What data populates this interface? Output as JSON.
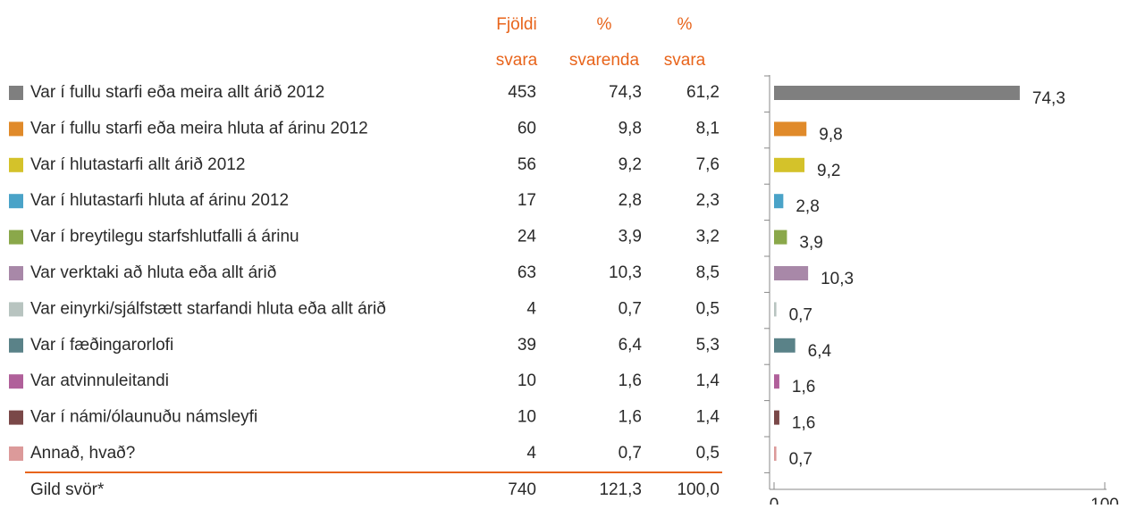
{
  "table": {
    "headers": [
      [
        "Fjöldi",
        "svara"
      ],
      [
        "%",
        "svarenda"
      ],
      [
        "%",
        "svara"
      ]
    ],
    "rows": [
      [
        "453",
        "61,2"
      ],
      [
        "60",
        "8,1"
      ],
      [
        "56",
        "7,6"
      ],
      [
        "17",
        "2,3"
      ],
      [
        "24",
        "3,2"
      ],
      [
        "63",
        "8,5"
      ],
      [
        "4",
        "0,5"
      ],
      [
        "39",
        "5,3"
      ],
      [
        "10",
        "1,4"
      ],
      [
        "10",
        "1,4"
      ],
      [
        "4",
        "0,5"
      ]
    ],
    "total": [
      "Gild svör*",
      "740",
      "121,3",
      "100,0"
    ]
  },
  "chart_data": {
    "type": "bar",
    "orientation": "horizontal",
    "categories": [
      "Var í fullu starfi eða meira allt árið 2012",
      "Var í fullu starfi eða meira hluta af árinu 2012",
      "Var í hlutastarfi allt árið 2012",
      "Var í hlutastarfi hluta af árinu 2012",
      "Var í breytilegu starfshlutfalli á árinu",
      "Var verktaki að hluta eða allt árið",
      "Var einyrki/sjálfstætt starfandi hluta eða allt árið",
      "Var í fæðingarorlofi",
      "Var atvinnuleitandi",
      "Var í námi/ólaunuðu námsleyfi",
      "Annað, hvað?"
    ],
    "series": [
      {
        "name": "% svarenda",
        "values": [
          74.3,
          9.8,
          9.2,
          2.8,
          3.9,
          10.3,
          0.7,
          6.4,
          1.6,
          1.6,
          0.7
        ],
        "value_labels": [
          "74,3",
          "9,8",
          "9,2",
          "2,8",
          "3,9",
          "10,3",
          "0,7",
          "6,4",
          "1,6",
          "1,6",
          "0,7"
        ],
        "colors": [
          "#7f7f7f",
          "#e08a2a",
          "#d4c22a",
          "#4aa3c8",
          "#8aa84a",
          "#a888a8",
          "#b8c4c0",
          "#5a8288",
          "#b0609a",
          "#7a4848",
          "#dc9a9a"
        ]
      }
    ],
    "xlim": [
      0,
      100
    ],
    "xticks": [
      0,
      100
    ]
  }
}
